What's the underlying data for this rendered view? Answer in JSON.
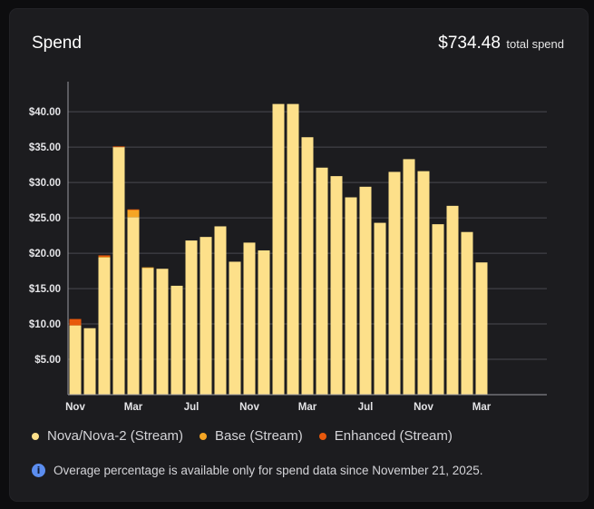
{
  "header": {
    "title": "Spend",
    "total_amount": "$734.48",
    "total_label": "total spend"
  },
  "colors": {
    "nova": "#fde08a",
    "base": "#f5a524",
    "enhanced": "#e8590c",
    "info": "#5b8def"
  },
  "legend": [
    {
      "label": "Nova/Nova-2 (Stream)",
      "color": "#fde08a"
    },
    {
      "label": "Base (Stream)",
      "color": "#f5a524"
    },
    {
      "label": "Enhanced (Stream)",
      "color": "#e8590c"
    }
  ],
  "note": {
    "icon": "info-icon",
    "text": "Overage percentage is available only for spend data since November 21, 2025."
  },
  "chart_data": {
    "type": "bar",
    "stacked": true,
    "grid": true,
    "ylim": [
      0,
      44
    ],
    "yticks": [
      5,
      10,
      15,
      20,
      25,
      30,
      35,
      40
    ],
    "ytick_labels": [
      "$5.00",
      "$10.00",
      "$15.00",
      "$20.00",
      "$25.00",
      "$30.00",
      "$35.00",
      "$40.00"
    ],
    "slots": 33,
    "xtick_labels": [
      {
        "slot": 0,
        "label": "Nov"
      },
      {
        "slot": 4,
        "label": "Mar"
      },
      {
        "slot": 8,
        "label": "Jul"
      },
      {
        "slot": 12,
        "label": "Nov"
      },
      {
        "slot": 16,
        "label": "Mar"
      },
      {
        "slot": 20,
        "label": "Jul"
      },
      {
        "slot": 24,
        "label": "Nov"
      },
      {
        "slot": 28,
        "label": "Mar"
      }
    ],
    "series": [
      {
        "name": "Nova/Nova-2 (Stream)",
        "color": "#fde08a",
        "values": [
          9.8,
          9.4,
          19.4,
          35.0,
          25.1,
          17.9,
          17.8,
          15.4,
          21.8,
          22.3,
          23.8,
          18.8,
          21.5,
          20.4,
          41.1,
          41.1,
          36.4,
          32.1,
          30.9,
          27.9,
          29.4,
          24.3,
          31.5,
          33.3,
          31.6,
          24.1,
          26.7,
          23.0,
          18.7
        ]
      },
      {
        "name": "Base (Stream)",
        "color": "#f5a524",
        "values": [
          0,
          0,
          0.1,
          0,
          1.0,
          0.1,
          0,
          0,
          0,
          0,
          0,
          0,
          0,
          0,
          0,
          0,
          0,
          0,
          0,
          0,
          0,
          0,
          0,
          0,
          0,
          0,
          0,
          0,
          0
        ]
      },
      {
        "name": "Enhanced (Stream)",
        "color": "#e8590c",
        "values": [
          0.9,
          0,
          0.2,
          0.1,
          0.1,
          0,
          0,
          0,
          0,
          0,
          0,
          0,
          0,
          0,
          0,
          0,
          0,
          0,
          0,
          0,
          0,
          0,
          0,
          0,
          0,
          0,
          0,
          0,
          0
        ]
      }
    ]
  }
}
